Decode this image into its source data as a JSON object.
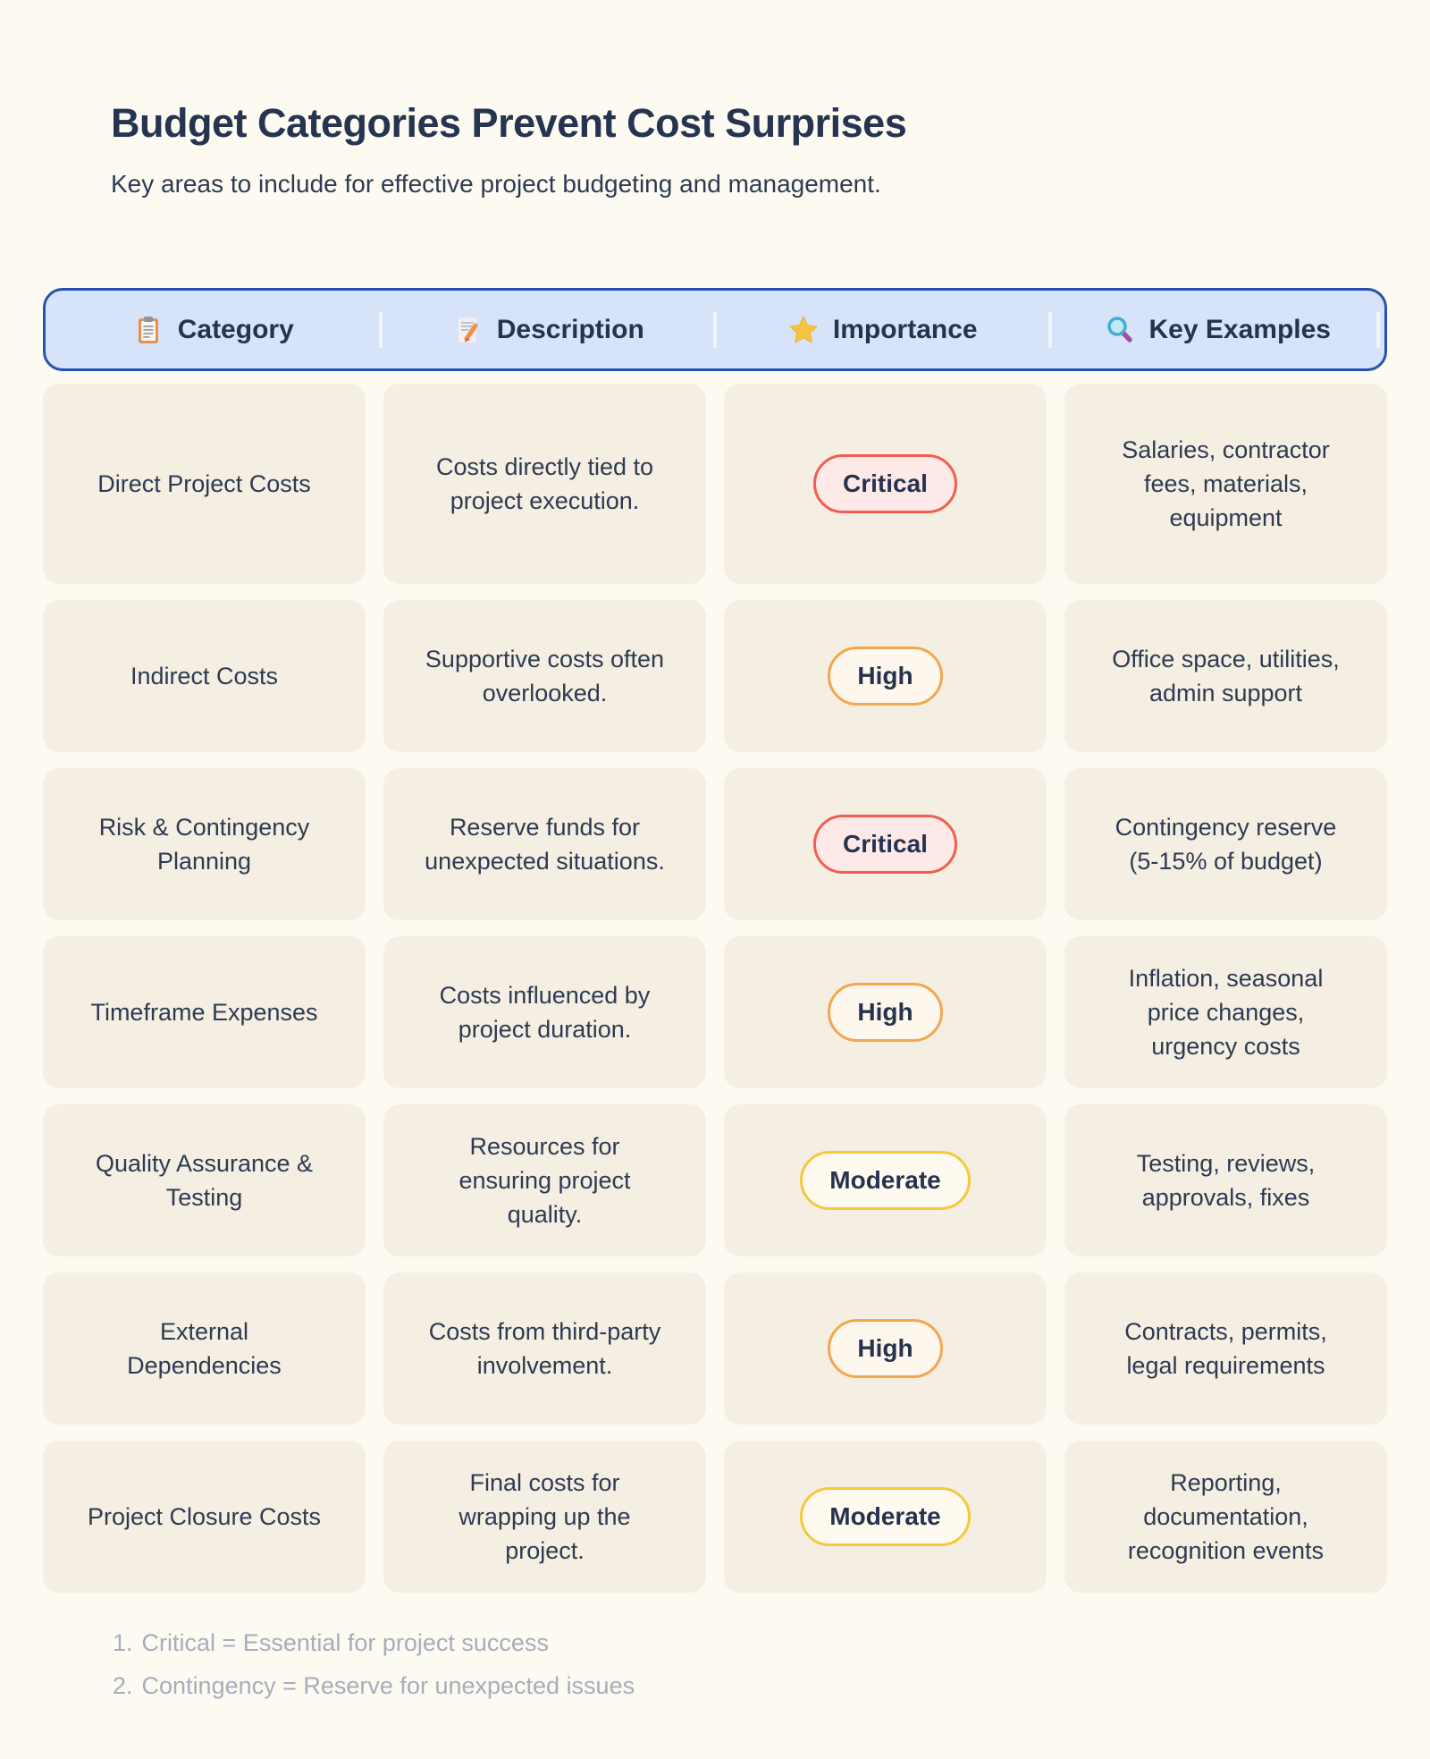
{
  "chart_data": {
    "type": "table",
    "title": "Budget Categories Prevent Cost Surprises",
    "subtitle": "Key areas to include for effective project budgeting and management.",
    "columns": [
      {
        "label": "Category",
        "icon": "clipboard-icon"
      },
      {
        "label": "Description",
        "icon": "memo-icon"
      },
      {
        "label": "Importance",
        "icon": "star-icon"
      },
      {
        "label": "Key Examples",
        "icon": "magnifier-icon"
      }
    ],
    "rows": [
      {
        "category": "Direct Project Costs",
        "description": "Costs directly tied to project execution.",
        "importance": "Critical",
        "importance_level": "critical",
        "examples": "Salaries, contractor fees, materials, equipment"
      },
      {
        "category": "Indirect Costs",
        "description": "Supportive costs often overlooked.",
        "importance": "High",
        "importance_level": "high",
        "examples": "Office space, utilities, admin support"
      },
      {
        "category": "Risk & Contingency Planning",
        "description": "Reserve funds for unexpected situations.",
        "importance": "Critical",
        "importance_level": "critical",
        "examples": "Contingency reserve (5-15% of budget)"
      },
      {
        "category": "Timeframe Expenses",
        "description": "Costs influenced by project duration.",
        "importance": "High",
        "importance_level": "high",
        "examples": "Inflation, seasonal price changes, urgency costs"
      },
      {
        "category": "Quality Assurance & Testing",
        "description": "Resources for ensuring project quality.",
        "importance": "Moderate",
        "importance_level": "moderate",
        "examples": "Testing, reviews, approvals, fixes"
      },
      {
        "category": "External Dependencies",
        "description": "Costs from third-party involvement.",
        "importance": "High",
        "importance_level": "high",
        "examples": "Contracts, permits, legal requirements"
      },
      {
        "category": "Project Closure Costs",
        "description": "Final costs for wrapping up the project.",
        "importance": "Moderate",
        "importance_level": "moderate",
        "examples": "Reporting, documentation, recognition events"
      }
    ],
    "footnotes": [
      {
        "num": "1.",
        "text": "Critical = Essential for project success"
      },
      {
        "num": "2.",
        "text": "Contingency = Reserve for unexpected issues"
      }
    ]
  },
  "colors": {
    "bg": "#fdfaf2",
    "card": "#f5eee2",
    "ink": "#2e3a52",
    "title": "#263450",
    "header_bg": "#d7e3f8",
    "header_border": "#2653b0",
    "critical_border": "#f15e51",
    "critical_bg": "#fdeae8",
    "high_border": "#f6a54f",
    "high_bg": "#fdf7ed",
    "moderate_border": "#f5c83f",
    "moderate_bg": "#fefaf0",
    "footnote": "#a6adbb"
  }
}
